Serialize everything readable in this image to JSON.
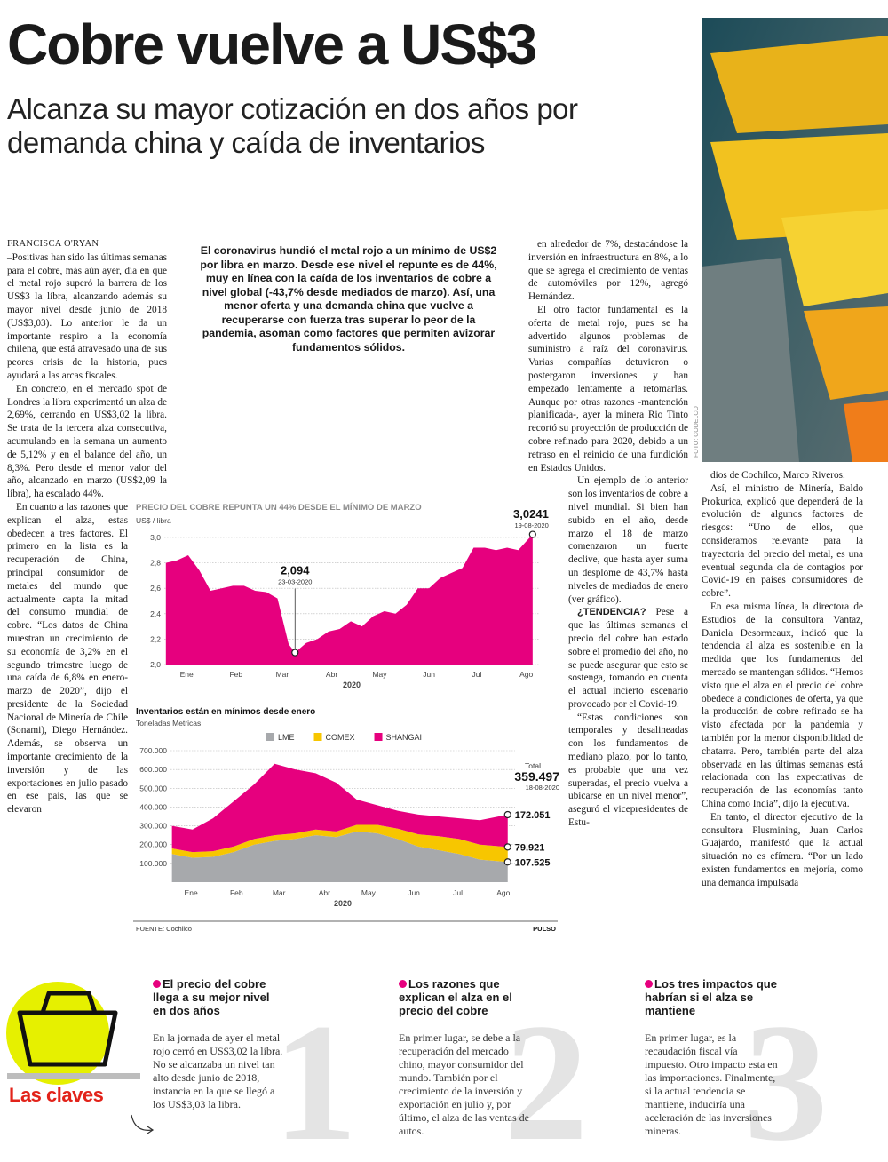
{
  "header": {
    "title": "Cobre vuelve a US$3",
    "subtitle": "Alcanza su mayor cotización en dos años por demanda china y caída de inventarios"
  },
  "photo_credit": "FOTO: CODELCO",
  "article": {
    "byline": "FRANCISCA O'RYAN",
    "lead": "El coronavirus hundió el metal rojo a un mínimo de US$2 por libra en marzo. Desde ese nivel el repunte es de 44%, muy en línea con la caída de los inventarios de cobre a nivel global (-43,7% desde mediados de marzo). Así, una menor oferta y una demanda china que vuelve a recuperarse con fuerza tras superar lo peor de la pandemia, asoman como factores que permiten avizorar fundamentos sólidos.",
    "columns": [
      [
        {
          "text": "–Positivas han sido las últimas semanas para el cobre, más aún ayer, día en que el metal rojo superó la barrera de los US$3 la libra, alcanzando además su mayor nivel desde junio de 2018 (US$3,03). Lo anterior le da un importante respiro a la economía chilena, que está atravesado una de sus peores crisis de la historia, pues ayudará a las arcas fiscales."
        },
        {
          "text": "En concreto, en el mercado spot de Londres la libra experimentó un alza de 2,69%, cerrando en US$3,02 la libra. Se trata de la tercera alza consecutiva, acumulando en la semana un aumento de 5,12% y en el balance del año, un 8,3%. Pero desde el menor valor del año, alcanzado en marzo (US$2,09 la libra), ha escalado 44%."
        },
        {
          "text": "En cuanto a las razones que explican el alza, estas obedecen a tres factores. El primero en la lista es la recuperación de China, principal consumidor de metales del mundo que actualmente capta la mitad del consumo mundial de cobre. “Los datos de China muestran un crecimiento de su economía de 3,2% en el segundo trimestre luego de una caída de 6,8% en enero-marzo de 2020”, dijo el presidente de la Sociedad Nacional de Minería de Chile (Sonami), Diego Hernández. Además, se observa un importante crecimiento de la inversión y de las exportaciones en julio pasado en ese país, las que se elevaron"
        }
      ],
      [
        {
          "text": "en alrededor de 7%, destacándose la inversión en infraestructura en 8%, a lo que se agrega el crecimiento de ventas de automóviles por 12%, agregó Hernández."
        },
        {
          "text": "El otro factor fundamental es la oferta de metal rojo, pues se ha advertido algunos problemas de suministro a raíz del coronavirus. Varias compañías detuvieron o postergaron inversiones y han empezado lentamente a retomarlas. Aunque por otras razones -mantención planificada-, ayer la minera Rio Tinto recortó su proyección de producción de cobre refinado para 2020, debido a un retraso en el reinicio de una fundición en Estados Unidos."
        },
        {
          "text": "Un ejemplo de lo anterior son los inventarios de cobre a nivel mundial. Si bien han subido en el año, desde marzo el 18 de marzo comenzaron un fuerte declive, que hasta ayer suma un desplome de 43,7% hasta niveles de mediados de enero (ver gráfico)."
        },
        {
          "kicker": "¿TENDENCIA?",
          "text": "Pese a que las últimas semanas el precio del cobre han estado sobre el promedio del año, no se puede asegurar que esto se sostenga, tomando en cuenta el actual incierto escenario provocado por el Covid-19."
        },
        {
          "text": "“Estas condiciones son temporales y desalineadas con los fundamentos de mediano plazo, por lo tanto, es probable que una vez superadas, el precio vuelva a ubicarse en un nivel menor”, aseguró el vicepresidentes de Estu-"
        }
      ],
      [
        {
          "text": "dios de Cochilco, Marco Riveros."
        },
        {
          "text": "Así, el ministro de Minería, Baldo Prokurica, explicó que dependerá de la evolución de algunos factores de riesgos: “Uno de ellos, que consideramos relevante para la trayectoria del precio del metal, es una eventual segunda ola de contagios por Covid-19 en países consumidores de cobre”."
        },
        {
          "text": "En esa misma línea, la directora de Estudios de la consultora Vantaz, Daniela Desormeaux, indicó que la tendencia al alza es sostenible en la medida que los fundamentos del mercado se mantengan sólidos. “Hemos visto que el alza en el precio del cobre obedece a condiciones de oferta, ya que la producción de cobre refinado se ha visto afectada por la pandemia y también por la menor disponibilidad de chatarra. Pero, también parte del alza observada en las últimas semanas está relacionada con las expectativas de recuperación de las economías tanto China como India”, dijo la ejecutiva."
        },
        {
          "text": "En tanto, el director ejecutivo de la consultora Plusmining, Juan Carlos Guajardo, manifestó que la actual situación no es efímera. “Por un lado existen fundamentos en mejoría, como una demanda impulsada"
        }
      ]
    ]
  },
  "chart_data": [
    {
      "type": "area",
      "title": "PRECIO DEL COBRE REPUNTA UN 44% DESDE EL MÍNIMO DE MARZO",
      "ylabel": "US$ / libra",
      "xlabel": "2020",
      "color": "#e6007e",
      "month_labels": [
        "Ene",
        "Feb",
        "Mar",
        "Abr",
        "May",
        "Jun",
        "Jul",
        "Ago"
      ],
      "xlim": [
        "01-01-2020",
        "23-08-2020"
      ],
      "x": [
        "02-01-2020",
        "09-01-2020",
        "16-01-2020",
        "23-01-2020",
        "30-01-2020",
        "06-02-2020",
        "13-02-2020",
        "20-02-2020",
        "27-02-2020",
        "05-03-2020",
        "12-03-2020",
        "19-03-2020",
        "23-03-2020",
        "30-03-2020",
        "06-04-2020",
        "13-04-2020",
        "20-04-2020",
        "27-04-2020",
        "04-05-2020",
        "11-05-2020",
        "18-05-2020",
        "25-05-2020",
        "01-06-2020",
        "08-06-2020",
        "15-06-2020",
        "22-06-2020",
        "29-06-2020",
        "06-07-2020",
        "13-07-2020",
        "20-07-2020",
        "27-07-2020",
        "03-08-2020",
        "10-08-2020",
        "19-08-2020"
      ],
      "values": [
        2.8,
        2.82,
        2.86,
        2.74,
        2.58,
        2.6,
        2.62,
        2.62,
        2.58,
        2.57,
        2.52,
        2.16,
        2.094,
        2.17,
        2.2,
        2.26,
        2.28,
        2.34,
        2.3,
        2.38,
        2.42,
        2.4,
        2.47,
        2.6,
        2.6,
        2.68,
        2.72,
        2.76,
        2.92,
        2.92,
        2.9,
        2.92,
        2.9,
        3.0241
      ],
      "ylim": [
        2.0,
        3.0
      ],
      "yticks": [
        {
          "value": 2.0,
          "label": "2,0"
        },
        {
          "value": 2.2,
          "label": "2,2"
        },
        {
          "value": 2.4,
          "label": "2,4"
        },
        {
          "value": 2.6,
          "label": "2,6"
        },
        {
          "value": 2.8,
          "label": "2,8"
        },
        {
          "value": 3.0,
          "label": "3,0"
        }
      ],
      "grid": true,
      "annotations": [
        {
          "value": 2.094,
          "label": "2,094",
          "date": "23-03-2020"
        },
        {
          "value": 3.0241,
          "label": "3,0241",
          "date": "19-08-2020"
        }
      ]
    },
    {
      "type": "stacked_area",
      "title": "Inventarios están en mínimos desde enero",
      "ylabel": "Toneladas Metricas",
      "xlabel": "2020",
      "month_labels": [
        "Ene",
        "Feb",
        "Mar",
        "Abr",
        "May",
        "Jun",
        "Jul",
        "Ago"
      ],
      "xlim": [
        "01-01-2020",
        "23-08-2020"
      ],
      "x": [
        "02-01-2020",
        "16-01-2020",
        "30-01-2020",
        "13-02-2020",
        "27-02-2020",
        "12-03-2020",
        "26-03-2020",
        "09-04-2020",
        "23-04-2020",
        "07-05-2020",
        "21-05-2020",
        "04-06-2020",
        "18-06-2020",
        "02-07-2020",
        "16-07-2020",
        "30-07-2020",
        "18-08-2020"
      ],
      "series": [
        {
          "name": "LME",
          "color": "#a7a9ac",
          "values": [
            150000,
            130000,
            135000,
            160000,
            200000,
            220000,
            230000,
            250000,
            240000,
            270000,
            260000,
            230000,
            190000,
            170000,
            150000,
            120000,
            107525
          ],
          "end_label": "107.525"
        },
        {
          "name": "COMEX",
          "color": "#f7c600",
          "values": [
            30000,
            30000,
            30000,
            30000,
            30000,
            30000,
            30000,
            30000,
            30000,
            35000,
            45000,
            55000,
            65000,
            75000,
            80000,
            80000,
            79921
          ],
          "end_label": "79.921"
        },
        {
          "name": "SHANGAI",
          "color": "#e6007e",
          "values": [
            120000,
            120000,
            175000,
            240000,
            290000,
            380000,
            340000,
            300000,
            260000,
            135000,
            105000,
            95000,
            105000,
            105000,
            110000,
            130000,
            172051
          ],
          "end_label": "172.051"
        }
      ],
      "total": {
        "label": "Total",
        "value": 359497,
        "value_label": "359.497",
        "date": "18-08-2020"
      },
      "ylim": [
        0,
        700000
      ],
      "yticks": [
        {
          "value": 100000,
          "label": "100.000"
        },
        {
          "value": 200000,
          "label": "200.000"
        },
        {
          "value": 300000,
          "label": "300.000"
        },
        {
          "value": 400000,
          "label": "400.000"
        },
        {
          "value": 500000,
          "label": "500.000"
        },
        {
          "value": 600000,
          "label": "600.000"
        },
        {
          "value": 700000,
          "label": "700.000"
        }
      ],
      "grid": true,
      "legend": "top"
    }
  ],
  "chart_footer": {
    "source": "FUENTE: Cochilco",
    "brand": "PULSO"
  },
  "keys": {
    "title": "Las claves",
    "items": [
      {
        "number": "1",
        "title": "El precio del cobre llega a su mejor nivel en dos años",
        "text": "En la jornada de ayer el metal rojo cerró en US$3,02 la libra. No se alcanzaba un nivel tan alto desde junio de 2018, instancia en la que se llegó a los US$3,03 la libra."
      },
      {
        "number": "2",
        "title": "Los razones que explican el alza en el precio del cobre",
        "text": "En primer lugar, se debe a la recuperación del mercado chino, mayor consumidor del mundo. También por el crecimiento de la inversión y exportación en julio y, por último, el alza de las ventas de autos."
      },
      {
        "number": "3",
        "title": "Los tres impactos que habrían si el alza se mantiene",
        "text": "En primer lugar, es la recaudación fiscal vía impuesto. Otro impacto esta en las importaciones. Finalmente, si la actual tendencia se mantiene, induciría una aceleración de las inversiones mineras."
      }
    ]
  }
}
